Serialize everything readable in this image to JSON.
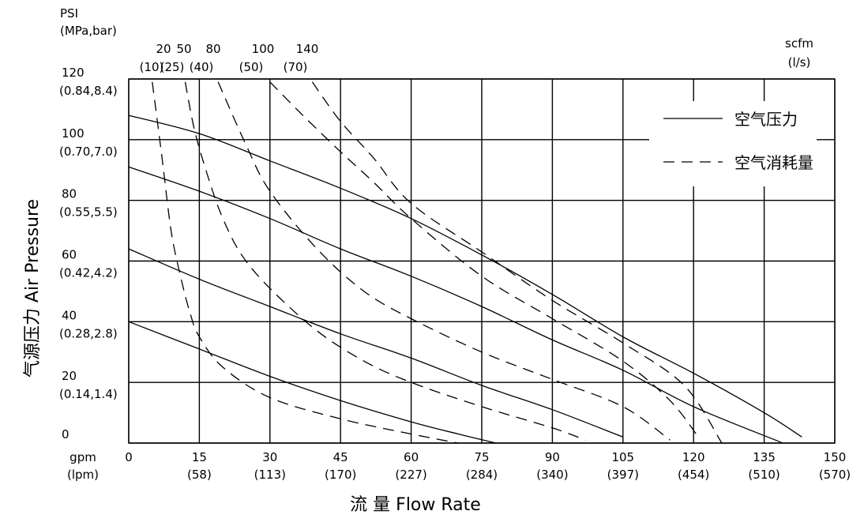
{
  "chart_data": {
    "type": "line",
    "title": "",
    "xlabel": "流 量 Flow Rate",
    "ylabel": "气源压力 Air Pressure",
    "x_unit_label": "gpm",
    "x_unit_label_alt": "(lpm)",
    "y_unit_label": "PSI",
    "y_unit_label_alt": "(MPa,bar)",
    "scfm_unit_label": "scfm",
    "scfm_unit_label_alt": "(l/s)",
    "xlim": [
      0,
      150
    ],
    "ylim": [
      0,
      120
    ],
    "grid": true,
    "x_ticks": [
      {
        "value": 0,
        "label": "0",
        "label2": ""
      },
      {
        "value": 15,
        "label": "15",
        "label2": "(58)"
      },
      {
        "value": 30,
        "label": "30",
        "label2": "(113)"
      },
      {
        "value": 45,
        "label": "45",
        "label2": "(170)"
      },
      {
        "value": 60,
        "label": "60",
        "label2": "(227)"
      },
      {
        "value": 75,
        "label": "75",
        "label2": "(284)"
      },
      {
        "value": 90,
        "label": "90",
        "label2": "(340)"
      },
      {
        "value": 105,
        "label": "105",
        "label2": "(397)"
      },
      {
        "value": 120,
        "label": "120",
        "label2": "(454)"
      },
      {
        "value": 135,
        "label": "135",
        "label2": "(510)"
      },
      {
        "value": 150,
        "label": "150",
        "label2": "(570)"
      }
    ],
    "y_ticks": [
      {
        "value": 0,
        "label": "0",
        "label2": ""
      },
      {
        "value": 20,
        "label": "20",
        "label2": "(0.14,1.4)"
      },
      {
        "value": 40,
        "label": "40",
        "label2": "(0.28,2.8)"
      },
      {
        "value": 60,
        "label": "60",
        "label2": "(0.42,4.2)"
      },
      {
        "value": 80,
        "label": "80",
        "label2": "(0.55,5.5)"
      },
      {
        "value": 100,
        "label": "100",
        "label2": "(0.70,7.0)"
      },
      {
        "value": 120,
        "label": "120",
        "label2": "(0.84,8.4)"
      }
    ],
    "scfm_ticks": [
      {
        "label": "20",
        "label2": "(10)"
      },
      {
        "label": "50",
        "label2": "(25)"
      },
      {
        "label": "80",
        "label2": "(40)"
      },
      {
        "label": "100",
        "label2": "(50)"
      },
      {
        "label": "140",
        "label2": "(70)"
      }
    ],
    "legend": {
      "position": "top-right",
      "items": [
        {
          "label": "空气压力",
          "style": "solid"
        },
        {
          "label": "空气消耗量",
          "style": "dashed"
        }
      ]
    },
    "series": [
      {
        "style": "solid",
        "points": [
          [
            0,
            108
          ],
          [
            15,
            102
          ],
          [
            30,
            93
          ],
          [
            45,
            84
          ],
          [
            60,
            74
          ],
          [
            75,
            62
          ],
          [
            90,
            49
          ],
          [
            105,
            35
          ],
          [
            120,
            23
          ],
          [
            135,
            10
          ],
          [
            143,
            2
          ]
        ]
      },
      {
        "style": "solid",
        "points": [
          [
            0,
            91
          ],
          [
            15,
            83
          ],
          [
            30,
            74
          ],
          [
            45,
            64
          ],
          [
            60,
            55
          ],
          [
            75,
            45
          ],
          [
            90,
            34
          ],
          [
            105,
            24
          ],
          [
            120,
            12
          ],
          [
            139,
            0
          ]
        ]
      },
      {
        "style": "solid",
        "points": [
          [
            0,
            64
          ],
          [
            15,
            54
          ],
          [
            30,
            45
          ],
          [
            45,
            36
          ],
          [
            60,
            28
          ],
          [
            75,
            19
          ],
          [
            90,
            11
          ],
          [
            105,
            2
          ]
        ]
      },
      {
        "style": "solid",
        "points": [
          [
            0,
            40
          ],
          [
            15,
            31
          ],
          [
            30,
            22
          ],
          [
            45,
            14
          ],
          [
            60,
            7
          ],
          [
            70,
            3
          ],
          [
            78,
            0
          ]
        ]
      },
      {
        "style": "dashed",
        "points": [
          [
            5,
            119
          ],
          [
            7,
            95
          ],
          [
            9,
            70
          ],
          [
            11,
            55
          ],
          [
            13,
            43
          ],
          [
            15,
            35
          ],
          [
            20,
            25
          ],
          [
            30,
            15
          ],
          [
            45,
            8
          ],
          [
            60,
            3
          ],
          [
            70,
            0
          ]
        ]
      },
      {
        "style": "dashed",
        "points": [
          [
            12,
            119
          ],
          [
            14,
            103
          ],
          [
            17,
            87
          ],
          [
            20,
            74
          ],
          [
            24,
            62
          ],
          [
            30,
            51
          ],
          [
            40,
            37
          ],
          [
            50,
            27
          ],
          [
            60,
            20
          ],
          [
            75,
            12
          ],
          [
            90,
            5
          ],
          [
            97,
            1
          ]
        ]
      },
      {
        "style": "dashed",
        "points": [
          [
            19,
            119
          ],
          [
            25,
            98
          ],
          [
            30,
            83
          ],
          [
            40,
            64
          ],
          [
            50,
            50
          ],
          [
            60,
            41
          ],
          [
            75,
            30
          ],
          [
            90,
            21
          ],
          [
            105,
            12
          ],
          [
            115,
            1
          ]
        ]
      },
      {
        "style": "dashed",
        "points": [
          [
            30,
            119
          ],
          [
            37,
            108
          ],
          [
            45,
            96
          ],
          [
            52,
            86
          ],
          [
            60,
            74
          ],
          [
            75,
            55
          ],
          [
            90,
            41
          ],
          [
            105,
            27
          ],
          [
            115,
            14
          ],
          [
            121,
            2
          ]
        ]
      },
      {
        "style": "dashed",
        "points": [
          [
            39,
            119
          ],
          [
            45,
            106
          ],
          [
            52,
            94
          ],
          [
            60,
            79
          ],
          [
            75,
            63
          ],
          [
            90,
            47
          ],
          [
            105,
            33
          ],
          [
            118,
            19
          ],
          [
            126,
            0
          ]
        ]
      }
    ]
  }
}
